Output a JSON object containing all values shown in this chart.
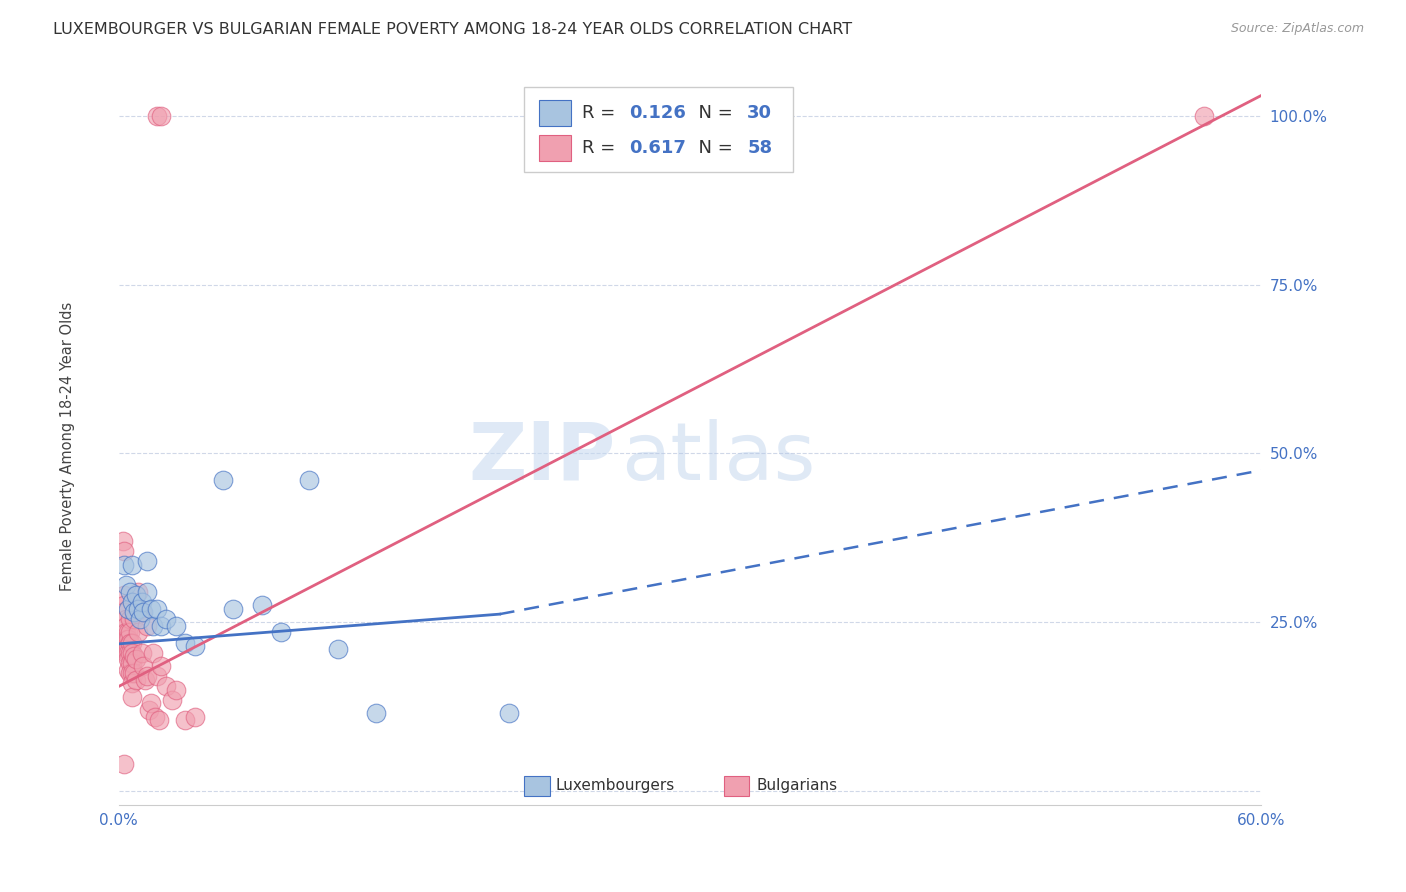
{
  "title": "LUXEMBOURGER VS BULGARIAN FEMALE POVERTY AMONG 18-24 YEAR OLDS CORRELATION CHART",
  "source": "Source: ZipAtlas.com",
  "ylabel_label": "Female Poverty Among 18-24 Year Olds",
  "xlim": [
    0.0,
    0.6
  ],
  "ylim": [
    -0.02,
    1.05
  ],
  "xticks": [
    0.0,
    0.1,
    0.2,
    0.3,
    0.4,
    0.5,
    0.6
  ],
  "xticklabels": [
    "0.0%",
    "",
    "",
    "",
    "",
    "",
    "60.0%"
  ],
  "yticks": [
    0.0,
    0.25,
    0.5,
    0.75,
    1.0
  ],
  "yticklabels": [
    "",
    "25.0%",
    "50.0%",
    "75.0%",
    "100.0%"
  ],
  "lux_R": 0.126,
  "lux_N": 30,
  "bul_R": 0.617,
  "bul_N": 58,
  "lux_color": "#a8c4e0",
  "bul_color": "#f0a0b0",
  "lux_line_color": "#4472c4",
  "bul_line_color": "#e06080",
  "bul_line": {
    "x0": 0.0,
    "y0": 0.155,
    "x1": 0.6,
    "y1": 1.03
  },
  "lux_line_solid": {
    "x0": 0.0,
    "y0": 0.218,
    "x1": 0.2,
    "y1": 0.262
  },
  "lux_line_dashed": {
    "x0": 0.2,
    "y0": 0.262,
    "x1": 0.6,
    "y1": 0.475
  },
  "lux_scatter": [
    [
      0.003,
      0.335
    ],
    [
      0.004,
      0.305
    ],
    [
      0.005,
      0.27
    ],
    [
      0.006,
      0.295
    ],
    [
      0.007,
      0.28
    ],
    [
      0.007,
      0.335
    ],
    [
      0.008,
      0.265
    ],
    [
      0.009,
      0.29
    ],
    [
      0.01,
      0.27
    ],
    [
      0.011,
      0.255
    ],
    [
      0.012,
      0.28
    ],
    [
      0.013,
      0.265
    ],
    [
      0.015,
      0.34
    ],
    [
      0.015,
      0.295
    ],
    [
      0.017,
      0.27
    ],
    [
      0.018,
      0.245
    ],
    [
      0.02,
      0.27
    ],
    [
      0.022,
      0.245
    ],
    [
      0.025,
      0.255
    ],
    [
      0.03,
      0.245
    ],
    [
      0.035,
      0.22
    ],
    [
      0.04,
      0.215
    ],
    [
      0.055,
      0.46
    ],
    [
      0.06,
      0.27
    ],
    [
      0.075,
      0.275
    ],
    [
      0.085,
      0.235
    ],
    [
      0.1,
      0.46
    ],
    [
      0.115,
      0.21
    ],
    [
      0.135,
      0.115
    ],
    [
      0.205,
      0.115
    ]
  ],
  "bul_scatter": [
    [
      0.002,
      0.37
    ],
    [
      0.003,
      0.355
    ],
    [
      0.003,
      0.29
    ],
    [
      0.003,
      0.275
    ],
    [
      0.003,
      0.265
    ],
    [
      0.004,
      0.255
    ],
    [
      0.004,
      0.245
    ],
    [
      0.004,
      0.235
    ],
    [
      0.004,
      0.225
    ],
    [
      0.004,
      0.215
    ],
    [
      0.004,
      0.205
    ],
    [
      0.005,
      0.235
    ],
    [
      0.005,
      0.225
    ],
    [
      0.005,
      0.215
    ],
    [
      0.005,
      0.205
    ],
    [
      0.005,
      0.195
    ],
    [
      0.005,
      0.18
    ],
    [
      0.006,
      0.255
    ],
    [
      0.006,
      0.235
    ],
    [
      0.006,
      0.22
    ],
    [
      0.006,
      0.205
    ],
    [
      0.006,
      0.19
    ],
    [
      0.006,
      0.175
    ],
    [
      0.007,
      0.22
    ],
    [
      0.007,
      0.205
    ],
    [
      0.007,
      0.19
    ],
    [
      0.007,
      0.175
    ],
    [
      0.007,
      0.16
    ],
    [
      0.007,
      0.14
    ],
    [
      0.008,
      0.255
    ],
    [
      0.008,
      0.2
    ],
    [
      0.008,
      0.175
    ],
    [
      0.009,
      0.195
    ],
    [
      0.009,
      0.165
    ],
    [
      0.01,
      0.295
    ],
    [
      0.01,
      0.235
    ],
    [
      0.012,
      0.265
    ],
    [
      0.012,
      0.205
    ],
    [
      0.013,
      0.185
    ],
    [
      0.014,
      0.165
    ],
    [
      0.015,
      0.245
    ],
    [
      0.015,
      0.17
    ],
    [
      0.016,
      0.12
    ],
    [
      0.017,
      0.13
    ],
    [
      0.018,
      0.205
    ],
    [
      0.019,
      0.11
    ],
    [
      0.02,
      0.17
    ],
    [
      0.021,
      0.105
    ],
    [
      0.022,
      0.185
    ],
    [
      0.025,
      0.155
    ],
    [
      0.028,
      0.135
    ],
    [
      0.03,
      0.15
    ],
    [
      0.035,
      0.105
    ],
    [
      0.04,
      0.11
    ],
    [
      0.02,
      1.0
    ],
    [
      0.022,
      1.0
    ],
    [
      0.57,
      1.0
    ],
    [
      0.003,
      0.04
    ]
  ],
  "background_color": "#ffffff",
  "grid_color": "#d0d8e8",
  "watermark_zip": "ZIP",
  "watermark_atlas": "atlas",
  "title_fontsize": 11.5,
  "source_fontsize": 9
}
